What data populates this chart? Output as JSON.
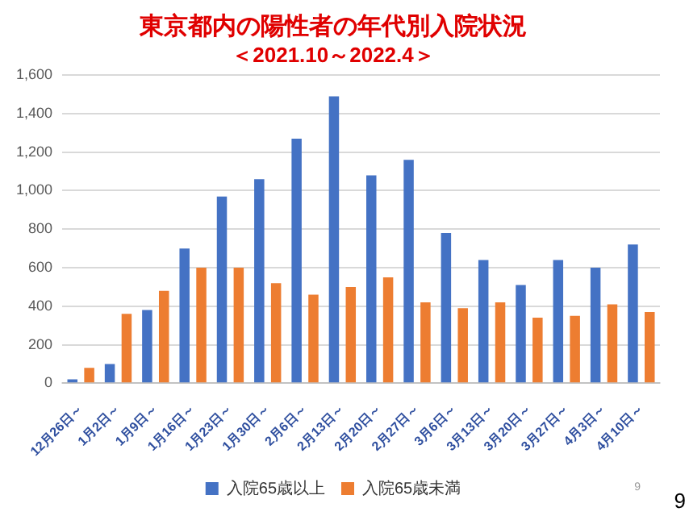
{
  "chart_data": {
    "type": "bar",
    "title": "東京都内の陽性者の年代別入院状況",
    "subtitle": "＜2021.10～2022.4＞",
    "categories": [
      "12月26日～",
      "1月2日～",
      "1月9日～",
      "1月16日～",
      "1月23日～",
      "1月30日～",
      "2月6日～",
      "2月13日～",
      "2月20日～",
      "2月27日～",
      "3月6日～",
      "3月13日～",
      "3月20日～",
      "3月27日～",
      "4月3日～",
      "4月10日～"
    ],
    "series": [
      {
        "name": "入院65歳以上",
        "color": "#4472c4",
        "values": [
          20,
          100,
          380,
          700,
          970,
          1060,
          1270,
          1490,
          1080,
          1160,
          780,
          640,
          510,
          640,
          600,
          720
        ]
      },
      {
        "name": "入院65歳未満",
        "color": "#ed7d31",
        "values": [
          80,
          360,
          480,
          600,
          600,
          520,
          460,
          500,
          550,
          420,
          390,
          420,
          340,
          350,
          410,
          370
        ]
      }
    ],
    "ylim": [
      0,
      1600
    ],
    "yticks": [
      0,
      200,
      400,
      600,
      800,
      {
        "value": 1000,
        "label": "1,000"
      },
      {
        "value": 1200,
        "label": "1,200"
      },
      {
        "value": 1400,
        "label": "1,400"
      },
      {
        "value": 1600,
        "label": "1,600"
      }
    ],
    "grid": "y",
    "legend": "bottom",
    "annotations": [
      "9",
      "9"
    ]
  }
}
